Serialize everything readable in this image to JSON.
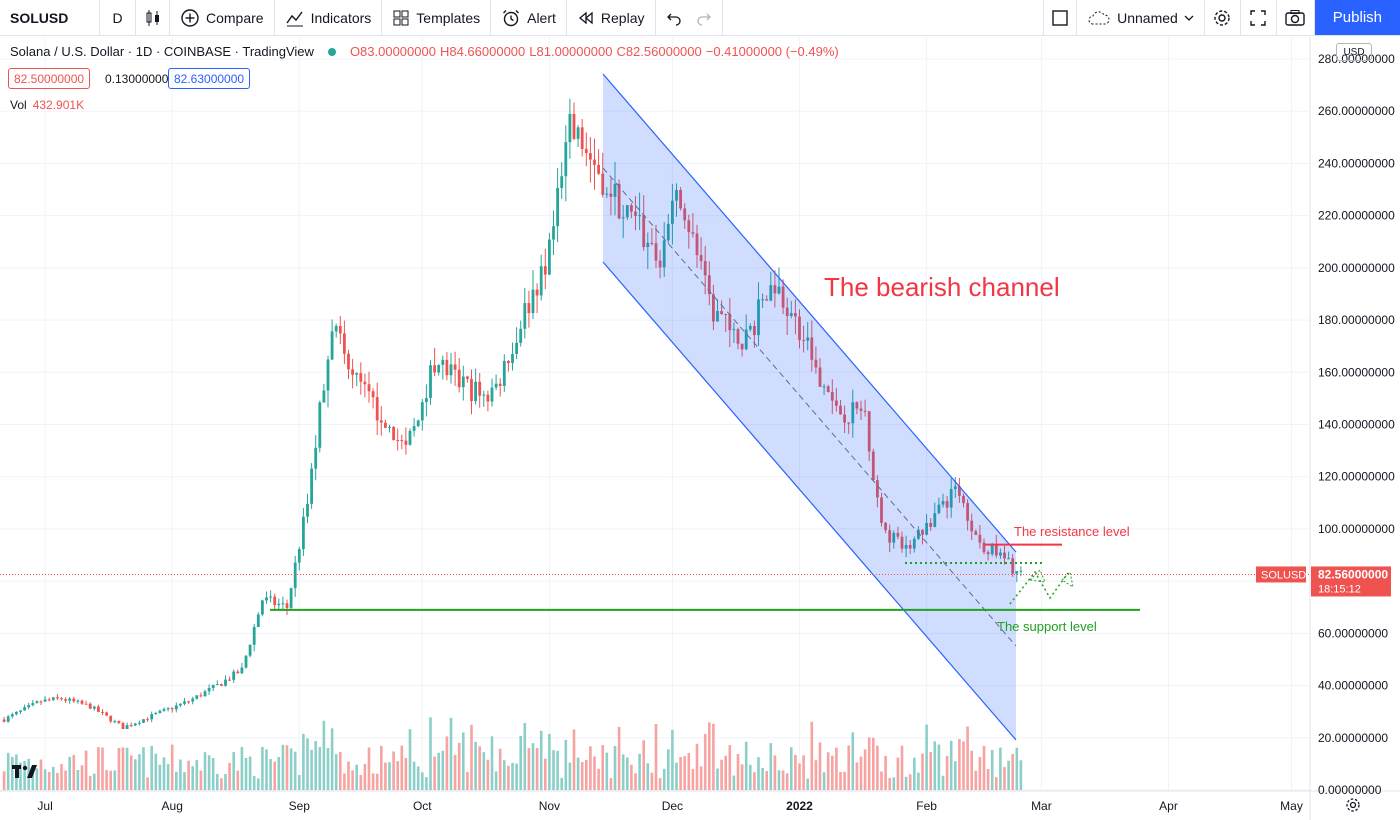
{
  "toolbar": {
    "symbol": "SOLUSD",
    "interval": "D",
    "compare": "Compare",
    "indicators": "Indicators",
    "templates": "Templates",
    "alert": "Alert",
    "replay": "Replay",
    "layout_name": "Unnamed",
    "publish": "Publish"
  },
  "legend": {
    "title": "Solana / U.S. Dollar · 1D · COINBASE · TradingView",
    "open": "O83.00000000",
    "high": "H84.66000000",
    "low": "L81.00000000",
    "close": "C82.56000000",
    "change": "−0.41000000 (−0.49%)",
    "bid": "82.50000000",
    "spread": "0.13000000",
    "ask": "82.63000000",
    "volume_label": "Vol",
    "volume_value": "432.901K"
  },
  "currency": "USD",
  "colors": {
    "up": "#26a69a",
    "down": "#ef5350",
    "channel": "#2962ff",
    "support": "#21a121",
    "resistance": "#f23645"
  },
  "chart_data": {
    "type": "candlestick",
    "symbol": "SOLUSD",
    "timeframe": "1D",
    "x_ticks": [
      "Jul",
      "Aug",
      "Sep",
      "Oct",
      "Nov",
      "Dec",
      "2022",
      "Feb",
      "Mar",
      "Apr",
      "May"
    ],
    "y_ticks": [
      "0.00000000",
      "20.00000000",
      "40.00000000",
      "60.00000000",
      "80.00000000",
      "100.00000000",
      "120.00000000",
      "140.00000000",
      "160.00000000",
      "180.00000000",
      "200.00000000",
      "220.00000000",
      "240.00000000",
      "260.00000000",
      "280.00000000"
    ],
    "ylim": [
      0,
      280
    ],
    "grid": true,
    "last_price": {
      "symbol": "SOLUSD",
      "price": "82.56000000",
      "countdown": "18:15:12"
    },
    "annotations": {
      "channel": "The bearish channel",
      "resistance": "The resistance level",
      "support": "The support level"
    },
    "levels": {
      "resistance": 94,
      "support": 69,
      "last_close": 82.56
    },
    "approx_close_path": [
      [
        "2021-06-21",
        27
      ],
      [
        "2021-06-30",
        34
      ],
      [
        "2021-07-05",
        35
      ],
      [
        "2021-07-12",
        32
      ],
      [
        "2021-07-20",
        24
      ],
      [
        "2021-07-28",
        29
      ],
      [
        "2021-08-05",
        34
      ],
      [
        "2021-08-12",
        40
      ],
      [
        "2021-08-18",
        46
      ],
      [
        "2021-08-23",
        73
      ],
      [
        "2021-08-29",
        70
      ],
      [
        "2021-09-03",
        110
      ],
      [
        "2021-09-09",
        180
      ],
      [
        "2021-09-13",
        160
      ],
      [
        "2021-09-20",
        145
      ],
      [
        "2021-09-27",
        130
      ],
      [
        "2021-10-04",
        165
      ],
      [
        "2021-10-11",
        155
      ],
      [
        "2021-10-18",
        150
      ],
      [
        "2021-10-25",
        180
      ],
      [
        "2021-11-01",
        205
      ],
      [
        "2021-11-06",
        252
      ],
      [
        "2021-11-10",
        245
      ],
      [
        "2021-11-20",
        220
      ],
      [
        "2021-11-28",
        205
      ],
      [
        "2021-12-03",
        230
      ],
      [
        "2021-12-10",
        185
      ],
      [
        "2021-12-18",
        170
      ],
      [
        "2021-12-26",
        195
      ],
      [
        "2022-01-03",
        170
      ],
      [
        "2022-01-10",
        145
      ],
      [
        "2022-01-17",
        145
      ],
      [
        "2022-01-21",
        100
      ],
      [
        "2022-01-27",
        92
      ],
      [
        "2022-02-03",
        105
      ],
      [
        "2022-02-08",
        115
      ],
      [
        "2022-02-14",
        95
      ],
      [
        "2022-02-20",
        88
      ],
      [
        "2022-02-24",
        82.56
      ]
    ]
  }
}
